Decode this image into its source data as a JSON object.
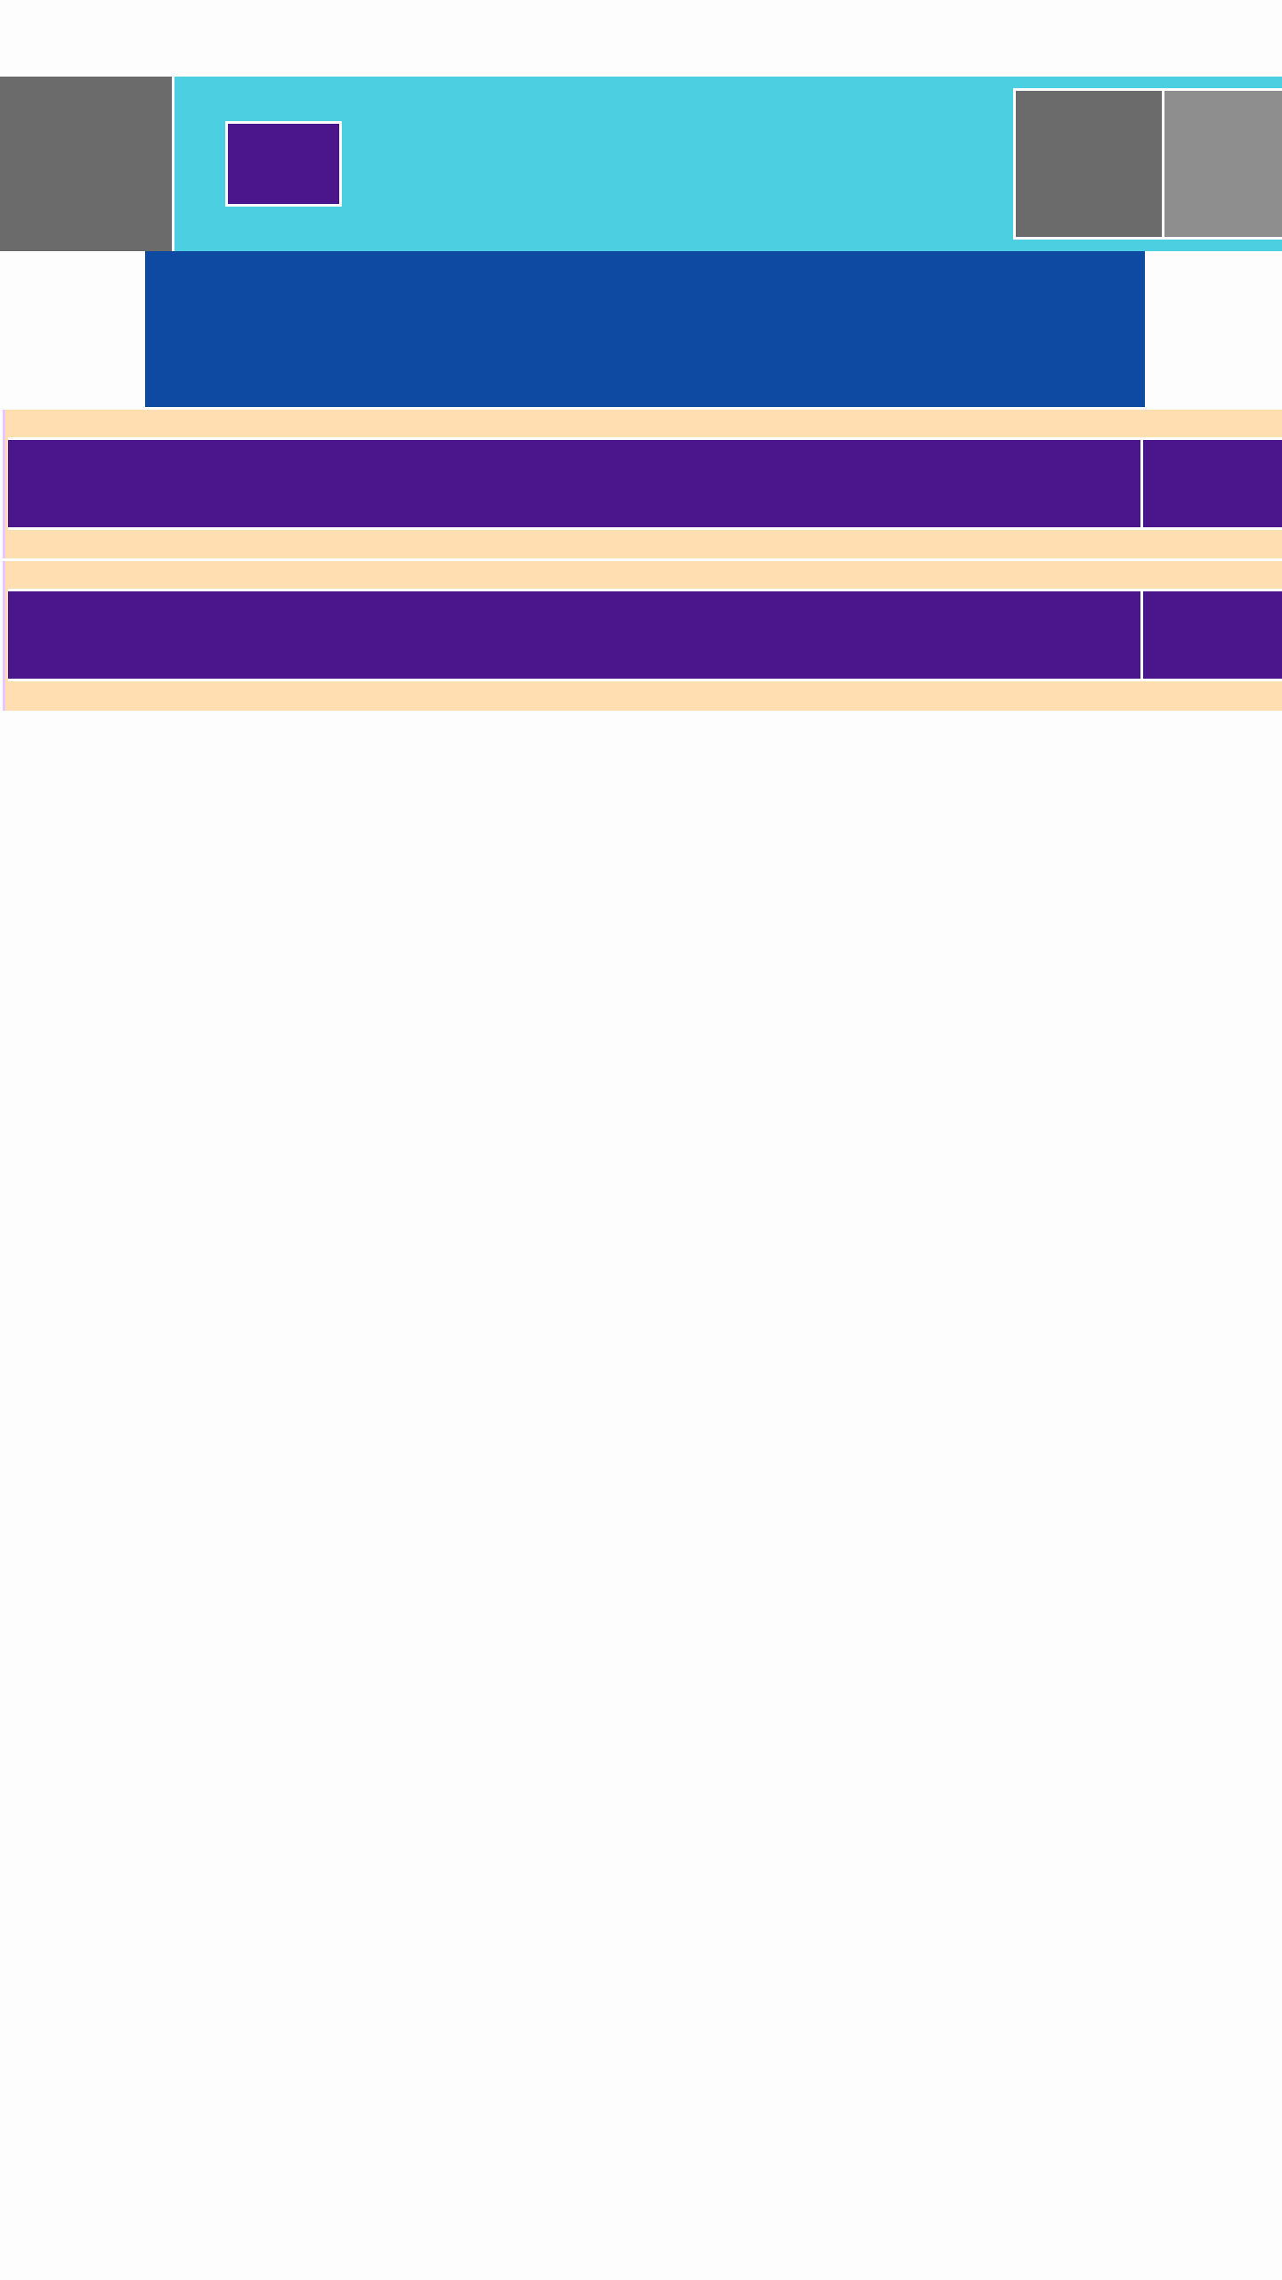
{
  "colors": {
    "app_bar": "#4ccfe1",
    "thumbnail_dark": "#6b6b6b",
    "thumbnail_light": "#8e8e8e",
    "action": "#4b168b",
    "banner": "#0e4aa1",
    "card": "#ffdfb2",
    "card_accent": "#e9c6ff",
    "page_bg": "#fdfdfd"
  },
  "header": {
    "nav_icon": "image-placeholder-icon",
    "action_icon": "image-placeholder-icon",
    "thumbnails": [
      "image-placeholder-icon",
      "image-placeholder-icon"
    ]
  },
  "list": {
    "items": [
      {
        "main_icon": "image-placeholder-icon",
        "side_icon": "image-placeholder-icon"
      },
      {
        "main_icon": "image-placeholder-icon",
        "side_icon": "image-placeholder-icon"
      }
    ]
  }
}
